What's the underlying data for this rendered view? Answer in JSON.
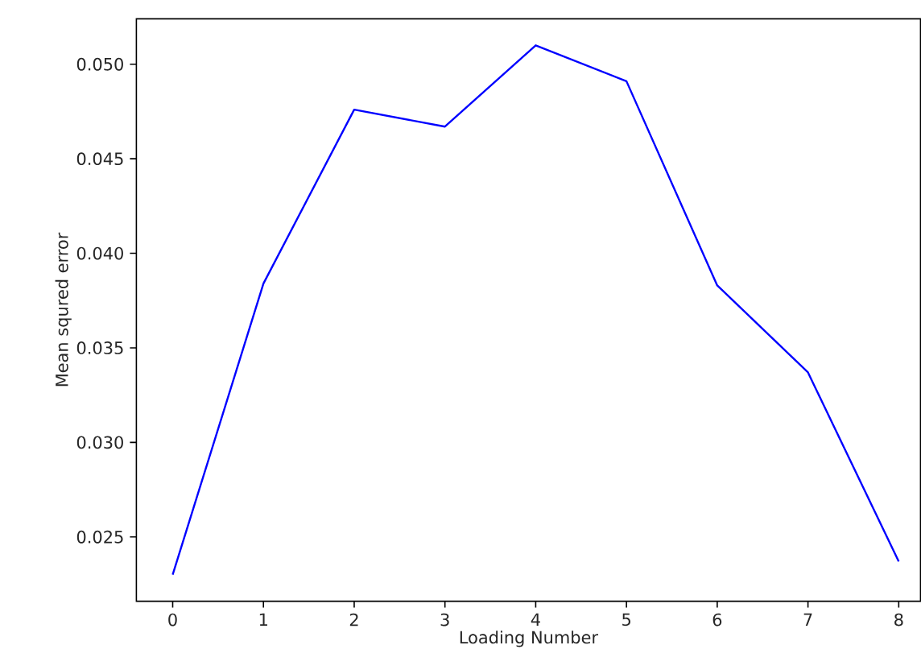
{
  "chart_data": {
    "type": "line",
    "xlabel": "Loading Number",
    "ylabel": "Mean squred error",
    "x": [
      0,
      1,
      2,
      3,
      4,
      5,
      6,
      7,
      8
    ],
    "series": [
      {
        "color": "#0000ff",
        "values": [
          0.023,
          0.0384,
          0.0476,
          0.0467,
          0.051,
          0.0491,
          0.0383,
          0.0337,
          0.0237
        ]
      }
    ],
    "xlim": [
      -0.4,
      8.24
    ],
    "ylim": [
      0.0216,
      0.0524
    ],
    "xticks": [
      0,
      1,
      2,
      3,
      4,
      5,
      6,
      7,
      8
    ],
    "yticks": [
      {
        "value": 0.025,
        "label": "0.025"
      },
      {
        "value": 0.03,
        "label": "0.030"
      },
      {
        "value": 0.035,
        "label": "0.035"
      },
      {
        "value": 0.04,
        "label": "0.040"
      },
      {
        "value": 0.045,
        "label": "0.045"
      },
      {
        "value": 0.05,
        "label": "0.050"
      }
    ],
    "line_style": "solid"
  }
}
